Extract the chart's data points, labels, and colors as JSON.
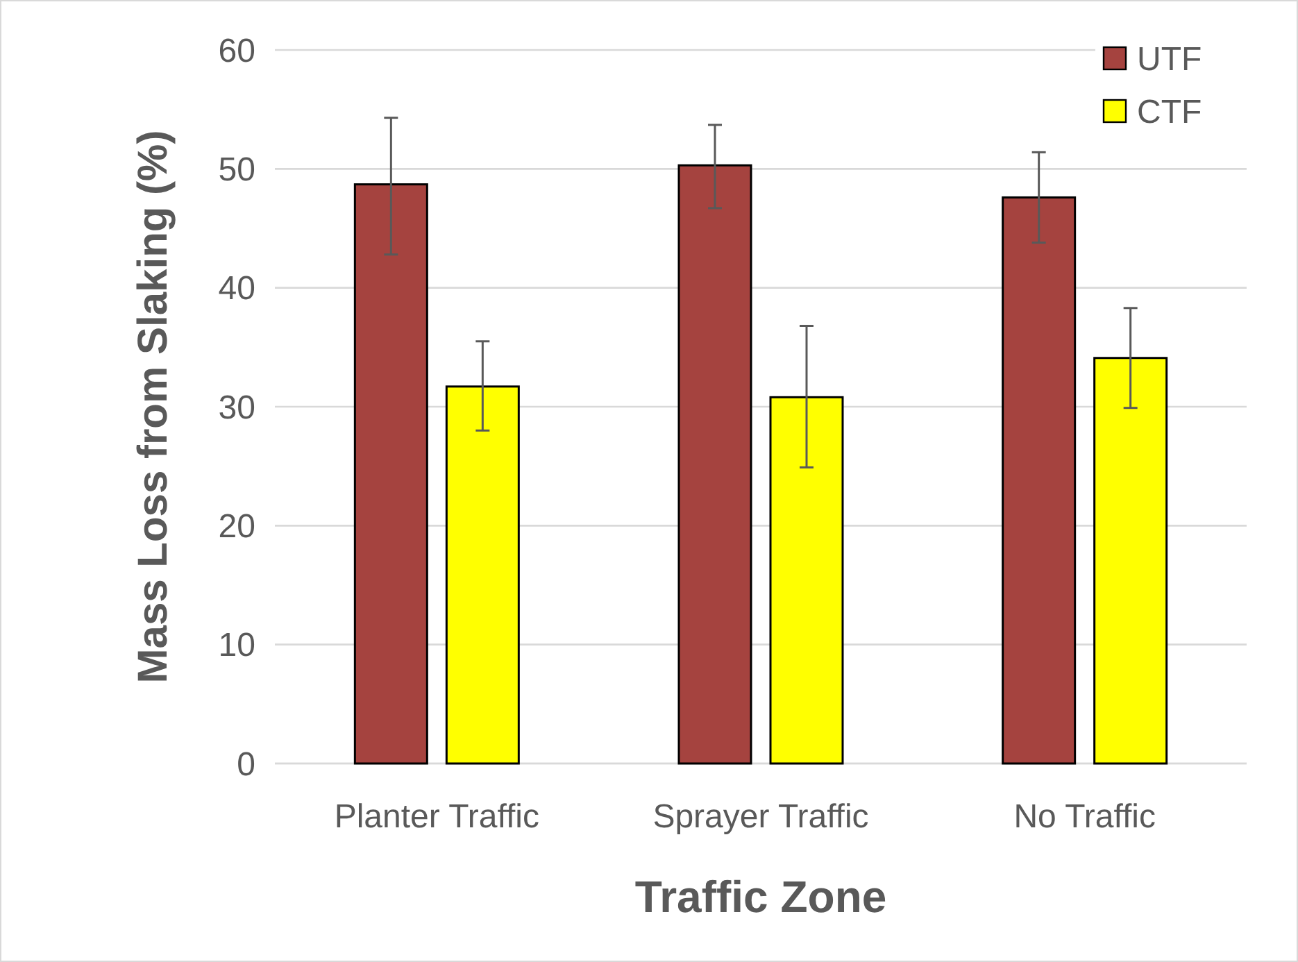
{
  "chart_data": {
    "type": "bar",
    "xlabel": "Traffic Zone",
    "ylabel": "Mass Loss from Slaking (%)",
    "categories": [
      "Planter Traffic",
      "Sprayer Traffic",
      "No Traffic"
    ],
    "series": [
      {
        "name": "UTF",
        "color": "#a5433f",
        "values": [
          48.7,
          50.3,
          47.6
        ],
        "errors": [
          [
            42.8,
            54.3
          ],
          [
            46.7,
            53.7
          ],
          [
            43.8,
            51.4
          ]
        ]
      },
      {
        "name": "CTF",
        "color": "#ffff00",
        "values": [
          31.7,
          30.8,
          34.1
        ],
        "errors": [
          [
            28.0,
            35.5
          ],
          [
            24.9,
            36.8
          ],
          [
            29.9,
            38.3
          ]
        ]
      }
    ],
    "ylim": [
      0,
      60
    ],
    "yticks": [
      0,
      10,
      20,
      30,
      40,
      50,
      60
    ],
    "grid": "y",
    "legend": "top right"
  }
}
